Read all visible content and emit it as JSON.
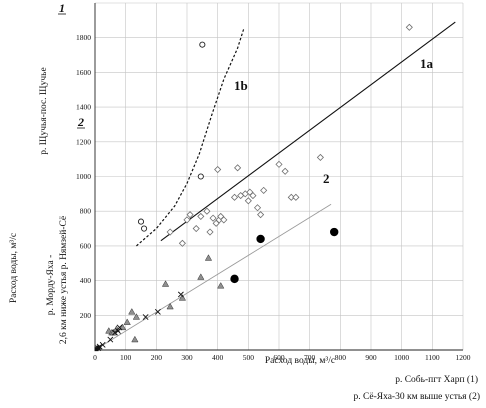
{
  "chart_data": {
    "type": "scatter",
    "xlim": [
      0,
      1200
    ],
    "ylim": [
      0,
      2000
    ],
    "x_ticks": [
      "0",
      "100",
      "200",
      "300",
      "400",
      "500",
      "600",
      "700",
      "800",
      "900",
      "1000",
      "1100",
      "1200"
    ],
    "y_ticks": [
      "200",
      "400",
      "600",
      "800",
      "1000",
      "1200",
      "1400",
      "1600",
      "1800"
    ],
    "xlabel": "Расход  воды, м³/с",
    "ylabel_top": "р. Щучья-пос. Щучье",
    "ylabel_bottom_line1": "р. Мордy-Яха -",
    "ylabel_bottom_line2": "2,6 км ниже устья р. Нямзей-Сё",
    "ylabel_outer": "Расход воды, м³/с",
    "axis_mark_1": "1",
    "axis_mark_2": "2",
    "legend_1": "р. Собь-пгт Харп (1)",
    "legend_2": "р. Сё-Яха-30 км выше устья (2)",
    "grid": true,
    "annotations": [
      "1a",
      "1b",
      "2"
    ],
    "series": [
      {
        "marker": "diamond-open",
        "values": [
          [
            245,
            680
          ],
          [
            285,
            615
          ],
          [
            300,
            750
          ],
          [
            310,
            780
          ],
          [
            330,
            700
          ],
          [
            345,
            770
          ],
          [
            365,
            800
          ],
          [
            375,
            680
          ],
          [
            385,
            760
          ],
          [
            395,
            730
          ],
          [
            400,
            1040
          ],
          [
            405,
            750
          ],
          [
            410,
            770
          ],
          [
            420,
            750
          ],
          [
            455,
            880
          ],
          [
            465,
            1050
          ],
          [
            475,
            890
          ],
          [
            490,
            900
          ],
          [
            500,
            860
          ],
          [
            505,
            910
          ],
          [
            515,
            890
          ],
          [
            530,
            820
          ],
          [
            540,
            780
          ],
          [
            550,
            920
          ],
          [
            600,
            1070
          ],
          [
            620,
            1030
          ],
          [
            640,
            880
          ],
          [
            655,
            880
          ],
          [
            735,
            1110
          ],
          [
            1025,
            1860
          ]
        ]
      },
      {
        "marker": "circle-open",
        "values": [
          [
            150,
            740
          ],
          [
            160,
            700
          ],
          [
            345,
            1000
          ],
          [
            350,
            1760
          ]
        ]
      },
      {
        "marker": "circle-filled",
        "values": [
          [
            455,
            410
          ],
          [
            540,
            640
          ],
          [
            780,
            680
          ]
        ]
      },
      {
        "marker": "triangle",
        "values": [
          [
            45,
            110
          ],
          [
            55,
            100
          ],
          [
            60,
            100
          ],
          [
            70,
            120
          ],
          [
            90,
            130
          ],
          [
            105,
            160
          ],
          [
            120,
            220
          ],
          [
            130,
            60
          ],
          [
            135,
            190
          ],
          [
            230,
            380
          ],
          [
            245,
            250
          ],
          [
            285,
            300
          ],
          [
            345,
            420
          ],
          [
            370,
            530
          ],
          [
            410,
            370
          ]
        ]
      },
      {
        "marker": "cross",
        "values": [
          [
            10,
            10
          ],
          [
            15,
            20
          ],
          [
            25,
            30
          ],
          [
            50,
            60
          ],
          [
            65,
            100
          ],
          [
            75,
            110
          ],
          [
            80,
            130
          ],
          [
            165,
            190
          ],
          [
            205,
            220
          ],
          [
            280,
            320
          ]
        ]
      },
      {
        "marker": "small-square",
        "values": [
          [
            5,
            5
          ],
          [
            12,
            15
          ]
        ]
      }
    ],
    "lines": [
      {
        "label": "1a",
        "style": "solid",
        "points": [
          [
            215,
            630
          ],
          [
            1175,
            1890
          ]
        ]
      },
      {
        "label": "1b",
        "style": "dashed",
        "points": [
          [
            135,
            600
          ],
          [
            200,
            700
          ],
          [
            260,
            830
          ],
          [
            300,
            960
          ],
          [
            340,
            1130
          ],
          [
            380,
            1350
          ],
          [
            420,
            1560
          ],
          [
            465,
            1740
          ],
          [
            485,
            1850
          ]
        ]
      },
      {
        "label": "2",
        "style": "thin",
        "points": [
          [
            0,
            0
          ],
          [
            770,
            840
          ]
        ]
      }
    ]
  }
}
